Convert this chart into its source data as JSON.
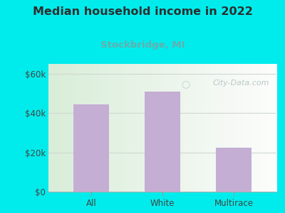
{
  "title": "Median household income in 2022",
  "subtitle": "Stockbridge, MI",
  "categories": [
    "All",
    "White",
    "Multirace"
  ],
  "values": [
    44500,
    51000,
    22500
  ],
  "bar_color": "#c4aed4",
  "background_color": "#00ecec",
  "plot_bg_left_color": "#c8e8c8",
  "plot_bg_right_color": "#f5f5f5",
  "title_color": "#2e2e2e",
  "subtitle_color": "#6aacac",
  "tick_color": "#444444",
  "ytick_color": "#444444",
  "ylim": [
    0,
    65000
  ],
  "yticks": [
    0,
    20000,
    40000,
    60000
  ],
  "ytick_labels": [
    "$0",
    "$20k",
    "$40k",
    "$60k"
  ],
  "watermark": "City-Data.com",
  "watermark_color": "#b0bfbf",
  "grid_color": "#d0d8d0"
}
